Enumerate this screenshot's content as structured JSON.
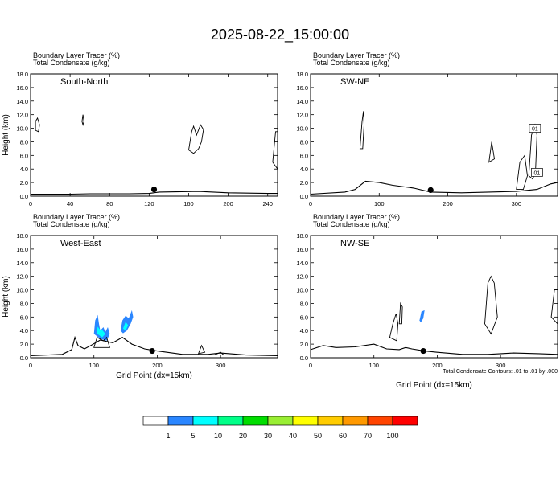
{
  "title": "2025-08-22_15:00:00",
  "fill_colors": [
    "#ffffff",
    "#2a86ff",
    "#00ffff",
    "#00ff88",
    "#00dd00",
    "#99ee33",
    "#ffff00",
    "#ffcc00",
    "#ff9900",
    "#ff4400",
    "#ff0000"
  ],
  "colorbar": {
    "labels": [
      "1",
      "5",
      "10",
      "20",
      "30",
      "40",
      "50",
      "60",
      "70",
      "100"
    ]
  },
  "chart_data": [
    {
      "type": "contour",
      "id": "south-north",
      "panel_label": "South-North",
      "heading1": "Boundary Layer Tracer",
      "heading1_unit": "(%)",
      "heading2": "Total Condensate",
      "heading2_unit": "(g/kg)",
      "ylabel": "Height (km)",
      "xlabel": "",
      "xlim": [
        0,
        250
      ],
      "ylim": [
        0,
        18
      ],
      "xticks": [
        "0",
        "40",
        "80",
        "120",
        "160",
        "200",
        "240"
      ],
      "xtick_values": [
        0,
        40,
        80,
        120,
        160,
        200,
        240
      ],
      "yticks": [
        "0.0",
        "2.0",
        "4.0",
        "6.0",
        "8.0",
        "10.0",
        "12.0",
        "14.0",
        "16.0",
        "18.0"
      ],
      "terrain": [
        [
          0,
          0.3
        ],
        [
          40,
          0.3
        ],
        [
          60,
          0.35
        ],
        [
          100,
          0.35
        ],
        [
          120,
          0.4
        ],
        [
          130,
          0.6
        ],
        [
          170,
          0.7
        ],
        [
          200,
          0.5
        ],
        [
          240,
          0.4
        ],
        [
          250,
          0.4
        ]
      ],
      "marker": [
        125,
        1.0
      ],
      "contours": [
        [
          [
            5,
            11
          ],
          [
            7,
            11.5
          ],
          [
            9,
            10.5
          ],
          [
            8,
            9.5
          ],
          [
            5,
            9.7
          ]
        ],
        [
          [
            52,
            11
          ],
          [
            53,
            12
          ],
          [
            54,
            11
          ],
          [
            53,
            10.5
          ]
        ],
        [
          [
            160,
            6.8
          ],
          [
            163,
            9.5
          ],
          [
            165,
            10.3
          ],
          [
            168,
            9.0
          ],
          [
            172,
            10.5
          ],
          [
            175,
            9.8
          ],
          [
            173,
            8
          ],
          [
            170,
            7
          ],
          [
            165,
            6.3
          ]
        ],
        [
          [
            245,
            5
          ],
          [
            248,
            9.5
          ],
          [
            250,
            9.5
          ],
          [
            250,
            4
          ]
        ]
      ],
      "fills": []
    },
    {
      "type": "contour",
      "id": "sw-ne",
      "panel_label": "SW-NE",
      "heading1": "Boundary Layer Tracer",
      "heading1_unit": "(%)",
      "heading2": "Total Condensate",
      "heading2_unit": "(g/kg)",
      "ylabel": "",
      "xlabel": "",
      "xlim": [
        0,
        360
      ],
      "ylim": [
        0,
        18
      ],
      "xticks": [
        "0",
        "100",
        "200",
        "300"
      ],
      "xtick_values": [
        0,
        100,
        200,
        300
      ],
      "yticks": [
        "0.0",
        "2.0",
        "4.0",
        "6.0",
        "8.0",
        "10.0",
        "12.0",
        "14.0",
        "16.0",
        "18.0"
      ],
      "terrain": [
        [
          0,
          0.3
        ],
        [
          50,
          0.6
        ],
        [
          65,
          1.0
        ],
        [
          80,
          2.2
        ],
        [
          100,
          2.0
        ],
        [
          120,
          1.6
        ],
        [
          150,
          1.2
        ],
        [
          175,
          0.6
        ],
        [
          220,
          0.5
        ],
        [
          260,
          0.6
        ],
        [
          300,
          0.7
        ],
        [
          330,
          1.0
        ],
        [
          350,
          1.8
        ],
        [
          360,
          2.0
        ]
      ],
      "marker": [
        175,
        0.9
      ],
      "contours": [
        [
          [
            72,
            7
          ],
          [
            75,
            11
          ],
          [
            77,
            12.5
          ],
          [
            78,
            10.5
          ],
          [
            76,
            7
          ]
        ],
        [
          [
            260,
            5
          ],
          [
            264,
            8
          ],
          [
            268,
            5.5
          ]
        ],
        [
          [
            318,
            3
          ],
          [
            322,
            9
          ],
          [
            327,
            10.5
          ],
          [
            330,
            9
          ],
          [
            328,
            4
          ],
          [
            324,
            2.5
          ]
        ],
        [
          [
            300,
            1
          ],
          [
            305,
            5
          ],
          [
            312,
            6
          ],
          [
            316,
            3
          ],
          [
            310,
            1
          ]
        ]
      ],
      "boxes": [
        [
          "01",
          327,
          10
        ],
        [
          "01",
          330,
          3.5
        ]
      ],
      "fills": []
    },
    {
      "type": "contour",
      "id": "west-east",
      "panel_label": "West-East",
      "heading1": "Boundary Layer Tracer",
      "heading1_unit": "(%)",
      "heading2": "Total Condensate",
      "heading2_unit": "(g/kg)",
      "ylabel": "Height (km)",
      "xlabel": "Grid Point (dx=15km)",
      "xlim": [
        0,
        390
      ],
      "ylim": [
        0,
        18
      ],
      "xticks": [
        "0",
        "100",
        "200",
        "300"
      ],
      "xtick_values": [
        0,
        100,
        200,
        300
      ],
      "yticks": [
        "0.0",
        "2.0",
        "4.0",
        "6.0",
        "8.0",
        "10.0",
        "12.0",
        "14.0",
        "16.0",
        "18.0"
      ],
      "terrain": [
        [
          0,
          0.3
        ],
        [
          50,
          0.5
        ],
        [
          65,
          1.2
        ],
        [
          70,
          3.0
        ],
        [
          75,
          1.8
        ],
        [
          85,
          1.3
        ],
        [
          95,
          1.8
        ],
        [
          110,
          2.6
        ],
        [
          130,
          2.2
        ],
        [
          145,
          3.0
        ],
        [
          160,
          2.0
        ],
        [
          180,
          1.3
        ],
        [
          200,
          1.0
        ],
        [
          240,
          0.5
        ],
        [
          280,
          0.5
        ],
        [
          300,
          0.7
        ],
        [
          340,
          0.4
        ],
        [
          390,
          0.3
        ]
      ],
      "marker": [
        192,
        1.0
      ],
      "contours": [
        [
          [
            100,
            1.5
          ],
          [
            105,
            3
          ],
          [
            115,
            2.5
          ],
          [
            120,
            3
          ],
          [
            125,
            1.5
          ]
        ],
        [
          [
            265,
            0.6
          ],
          [
            270,
            1.8
          ],
          [
            275,
            0.8
          ]
        ],
        [
          [
            290,
            0.4
          ],
          [
            300,
            0.8
          ],
          [
            305,
            0.4
          ]
        ]
      ],
      "fills": [
        {
          "color_index": 1,
          "points": [
            [
              100,
              3.5
            ],
            [
              102,
              5.5
            ],
            [
              106,
              6.3
            ],
            [
              108,
              5
            ],
            [
              110,
              4
            ],
            [
              115,
              4.5
            ],
            [
              118,
              3.8
            ],
            [
              122,
              4.5
            ],
            [
              125,
              3.5
            ],
            [
              120,
              2.5
            ],
            [
              110,
              2.8
            ]
          ]
        },
        {
          "color_index": 2,
          "points": [
            [
              104,
              3.6
            ],
            [
              106,
              4.6
            ],
            [
              109,
              4.2
            ],
            [
              114,
              4
            ],
            [
              118,
              3.5
            ],
            [
              113,
              3
            ]
          ]
        },
        {
          "color_index": 1,
          "points": [
            [
              142,
              4
            ],
            [
              145,
              5.5
            ],
            [
              150,
              6.2
            ],
            [
              155,
              5.8
            ],
            [
              160,
              7
            ],
            [
              162,
              6
            ],
            [
              158,
              5
            ],
            [
              152,
              4
            ],
            [
              146,
              3.6
            ]
          ]
        },
        {
          "color_index": 2,
          "points": [
            [
              146,
              4.3
            ],
            [
              150,
              5.3
            ],
            [
              154,
              4.8
            ],
            [
              150,
              4
            ]
          ]
        }
      ]
    },
    {
      "type": "contour",
      "id": "nw-se",
      "panel_label": "NW-SE",
      "heading1": "Boundary Layer Tracer",
      "heading1_unit": "(%)",
      "heading2": "Total Condensate",
      "heading2_unit": "(g/kg)",
      "ylabel": "",
      "xlabel": "Grid Point (dx=15km)",
      "xlim": [
        0,
        390
      ],
      "ylim": [
        0,
        18
      ],
      "xticks": [
        "0",
        "100",
        "200",
        "300"
      ],
      "xtick_values": [
        0,
        100,
        200,
        300
      ],
      "yticks": [
        "0.0",
        "2.0",
        "4.0",
        "6.0",
        "8.0",
        "10.0",
        "12.0",
        "14.0",
        "16.0",
        "18.0"
      ],
      "terrain": [
        [
          0,
          1.2
        ],
        [
          20,
          1.8
        ],
        [
          40,
          1.5
        ],
        [
          70,
          1.6
        ],
        [
          100,
          2.0
        ],
        [
          120,
          1.3
        ],
        [
          140,
          1.2
        ],
        [
          150,
          1.5
        ],
        [
          160,
          1.3
        ],
        [
          180,
          1.0
        ],
        [
          200,
          0.8
        ],
        [
          240,
          0.5
        ],
        [
          280,
          0.5
        ],
        [
          320,
          0.7
        ],
        [
          360,
          0.6
        ],
        [
          390,
          0.5
        ]
      ],
      "marker": [
        178,
        1.0
      ],
      "contours": [
        [
          [
            125,
            3
          ],
          [
            130,
            5
          ],
          [
            135,
            6.5
          ],
          [
            138,
            5
          ],
          [
            136,
            2.5
          ]
        ],
        [
          [
            140,
            5
          ],
          [
            142,
            8
          ],
          [
            145,
            7.5
          ],
          [
            144,
            5
          ]
        ],
        [
          [
            275,
            5
          ],
          [
            280,
            11
          ],
          [
            285,
            12
          ],
          [
            290,
            11
          ],
          [
            295,
            6
          ],
          [
            285,
            3.5
          ]
        ],
        [
          [
            380,
            6
          ],
          [
            385,
            10
          ],
          [
            390,
            10
          ],
          [
            390,
            5
          ]
        ]
      ],
      "fills": [
        {
          "color_index": 1,
          "points": [
            [
              172,
              5.5
            ],
            [
              175,
              6.8
            ],
            [
              180,
              7
            ],
            [
              178,
              5.8
            ],
            [
              174,
              5.2
            ]
          ]
        }
      ],
      "note": "Total Condensate Contours: .01 to .01 by .000"
    }
  ]
}
